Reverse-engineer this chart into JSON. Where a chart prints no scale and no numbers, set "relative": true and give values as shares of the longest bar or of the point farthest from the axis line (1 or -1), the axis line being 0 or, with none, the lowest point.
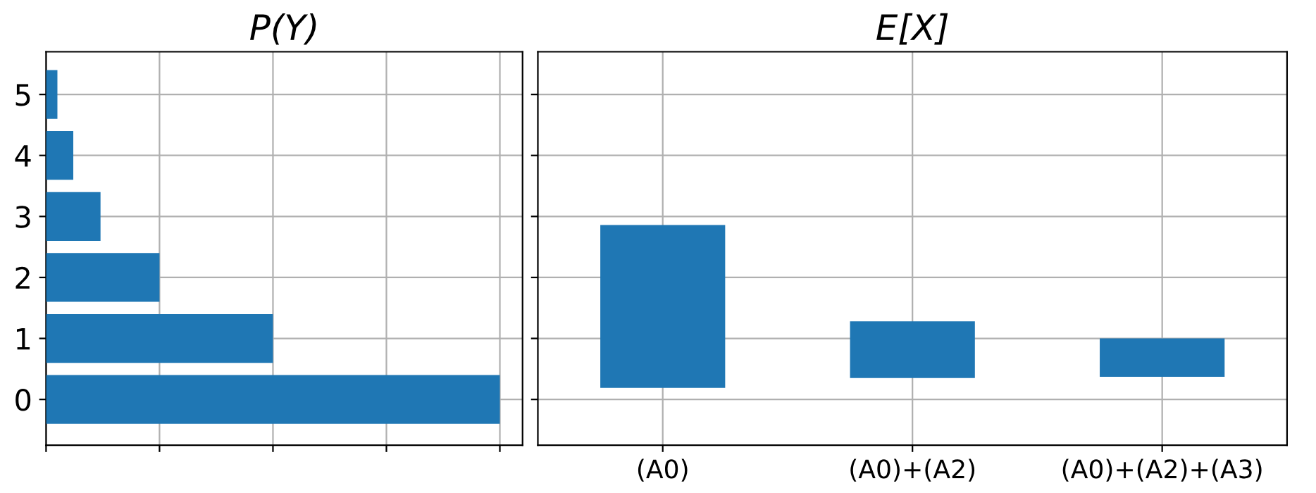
{
  "chart_data": [
    {
      "type": "bar",
      "title": "P(Y)",
      "orientation": "horizontal",
      "relative": true,
      "categories": [
        "5",
        "4",
        "3",
        "2",
        "1",
        "0"
      ],
      "values": [
        0.025,
        0.06,
        0.12,
        0.25,
        0.5,
        1
      ],
      "color": "#1f77b4",
      "grid": true,
      "tick_labels": "y"
    },
    {
      "type": "bar",
      "title": "E[X]",
      "categories": [
        "(A0)",
        "(A0)+(A2)",
        "(A0)+(A2)+(A3)"
      ],
      "base": [
        0.19,
        0.35,
        0.37
      ],
      "values": [
        2.67,
        0.93,
        0.63
      ],
      "color": "#1f77b4",
      "ylim": [
        -0.75,
        5.7
      ],
      "yticks": [
        0,
        1,
        2,
        3,
        4,
        5
      ],
      "grid": true,
      "tick_labels": "x"
    }
  ]
}
